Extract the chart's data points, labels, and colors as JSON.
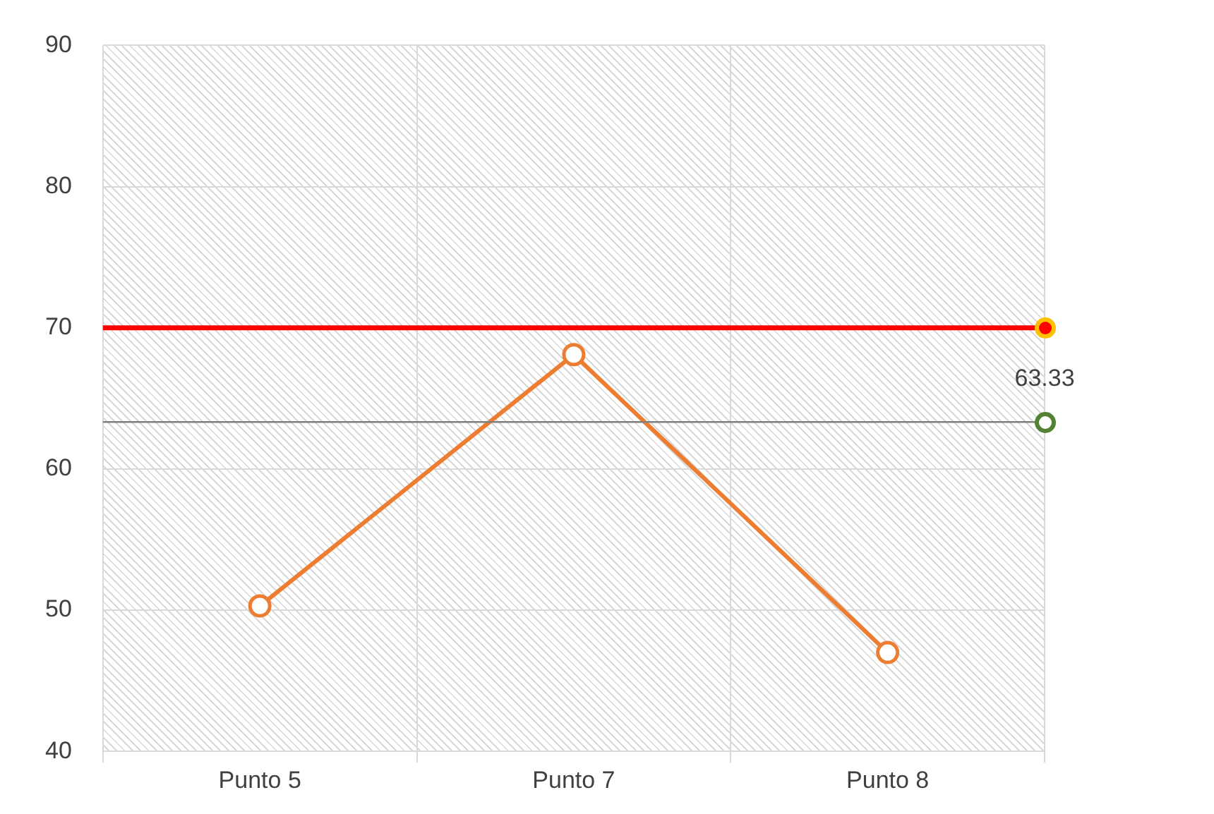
{
  "chart_data": {
    "type": "line",
    "categories": [
      "Punto 5",
      "Punto 7",
      "Punto 8"
    ],
    "series": [
      {
        "color": "#ed7d31",
        "values": [
          50.3,
          68.1,
          47
        ]
      }
    ],
    "ylim": [
      40,
      90
    ],
    "yticks": [
      40,
      50,
      60,
      70,
      80,
      90
    ],
    "grid": true,
    "legend": false,
    "marker": "circle",
    "line_style": "solid",
    "ref_lines": [
      {
        "axis": "y",
        "value": 70,
        "color": "#ff0000"
      },
      {
        "axis": "y",
        "value": 63.33,
        "label": "63.33",
        "color": "#7f7f7f"
      }
    ]
  }
}
